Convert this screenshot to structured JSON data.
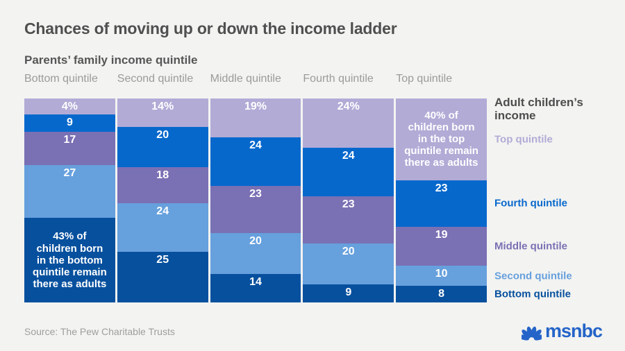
{
  "title": "Chances of moving up or down the income ladder",
  "x_axis_title": "Parents’ family income quintile",
  "source": "Source: The Pew Charitable Trusts",
  "logo": {
    "text": "msnbc",
    "icon": "nbc-peacock-icon",
    "color": "#2464c8"
  },
  "colors": {
    "background": "#f3f3f1",
    "title": "#4f4f4f",
    "subtitle": "#565656",
    "column_header": "#9b9b9b",
    "segment_text": "#ffffff",
    "source_text": "#9e9e9e"
  },
  "legend": {
    "title": "Adult children’s income",
    "items": [
      {
        "label": "Top quintile",
        "color": "#b2abd6"
      },
      {
        "label": "Fourth quintile",
        "color": "#0768cc"
      },
      {
        "label": "Middle quintile",
        "color": "#7a70b4"
      },
      {
        "label": "Second quintile",
        "color": "#66a0dd"
      },
      {
        "label": "Bottom quintile",
        "color": "#07509e"
      }
    ]
  },
  "chart_data": {
    "type": "bar",
    "stacked": true,
    "orientation": "vertical",
    "unit": "percent",
    "title": "Chances of moving up or down the income ladder",
    "xlabel": "Parents’ family income quintile",
    "series_axis_label": "Adult children’s income",
    "categories": [
      "Bottom quintile",
      "Second quintile",
      "Middle quintile",
      "Fourth quintile",
      "Top quintile"
    ],
    "series": [
      {
        "name": "Top quintile",
        "color": "#b2abd6",
        "values": [
          4,
          14,
          19,
          24,
          40
        ]
      },
      {
        "name": "Fourth quintile",
        "color": "#0768cc",
        "values": [
          9,
          20,
          24,
          24,
          23
        ]
      },
      {
        "name": "Middle quintile",
        "color": "#7a70b4",
        "values": [
          17,
          18,
          23,
          23,
          19
        ]
      },
      {
        "name": "Second quintile",
        "color": "#66a0dd",
        "values": [
          27,
          24,
          20,
          20,
          10
        ]
      },
      {
        "name": "Bottom quintile",
        "color": "#07509e",
        "values": [
          43,
          25,
          14,
          9,
          8
        ]
      }
    ],
    "segment_labels": [
      [
        "4%",
        "9",
        "17",
        "27",
        "43% of\nchildren born\nin the bottom\nquintile remain\nthere as adults"
      ],
      [
        "14%",
        "20",
        "18",
        "24",
        "25"
      ],
      [
        "19%",
        "24",
        "23",
        "20",
        "14"
      ],
      [
        "24%",
        "24",
        "23",
        "20",
        "9"
      ],
      [
        "40% of\nchildren born\nin the top\nquintile remain\nthere as adults",
        "23",
        "19",
        "10",
        "8"
      ]
    ],
    "legend_position": "right",
    "grid": false,
    "axis_ticks": false
  }
}
